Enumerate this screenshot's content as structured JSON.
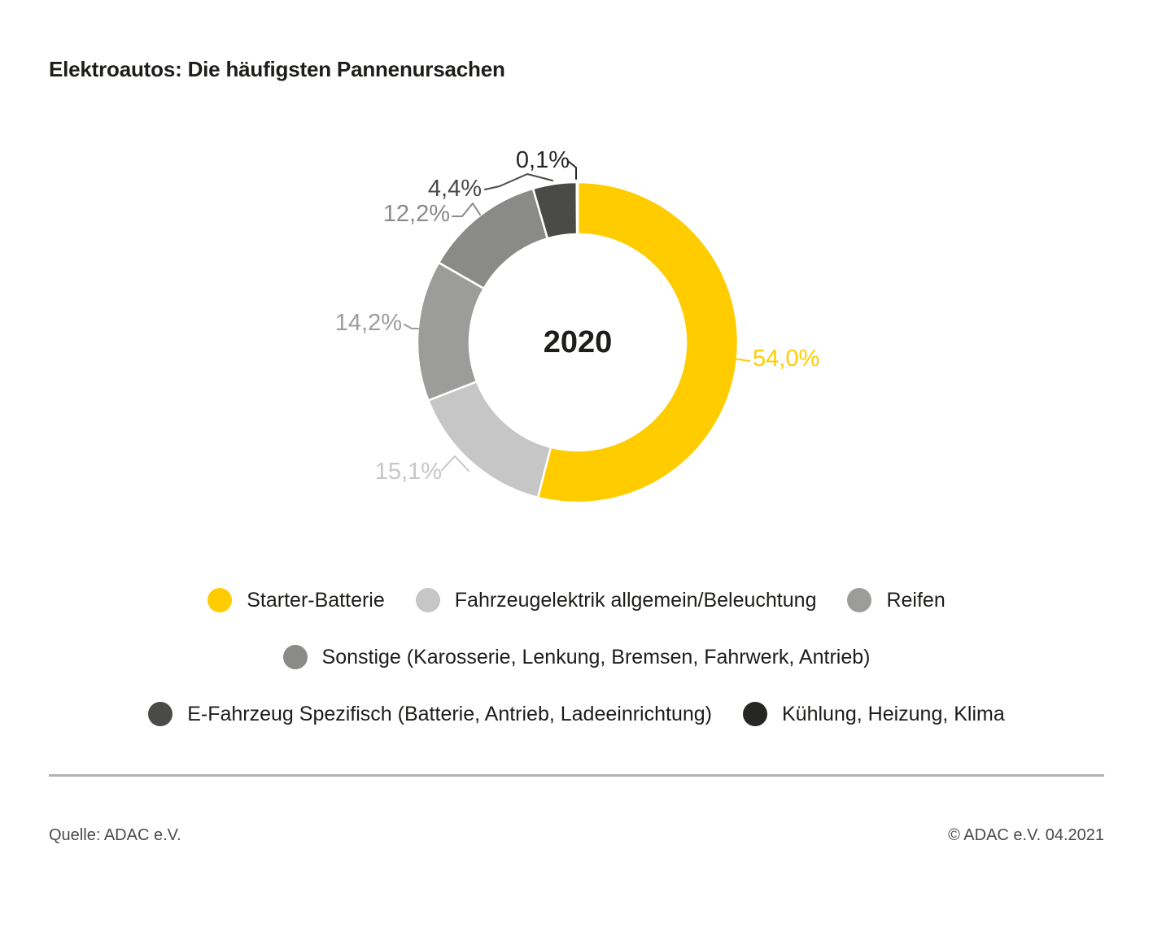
{
  "title": "Elektroautos: Die häufigsten Pannenursachen",
  "chart_data": {
    "type": "pie",
    "subtype": "donut",
    "center_label": "2020",
    "unit": "%",
    "direction": "clockwise",
    "start_angle_deg": 0,
    "legend_position": "bottom",
    "segments": [
      {
        "label": "Starter-Batterie",
        "value": 54.0,
        "display": "54,0%",
        "color": "#FFCC00"
      },
      {
        "label": "Fahrzeugelektrik allgemein/Beleuchtung",
        "value": 15.1,
        "display": "15,1%",
        "color": "#C6C6C6"
      },
      {
        "label": "Reifen",
        "value": 14.2,
        "display": "14,2%",
        "color": "#9C9C9B"
      },
      {
        "label": "Sonstige (Karosserie, Lenkung, Bremsen, Fahrwerk, Antrieb)",
        "value": 12.2,
        "display": "12,2%",
        "color": "#8A8A89"
      },
      {
        "label": "E-Fahrzeug Spezifisch (Batterie, Antrieb, Ladeeinrichtung)",
        "value": 4.4,
        "display": "4,4%",
        "color": "#4A4A49"
      },
      {
        "label": "Kühlung, Heizung, Klima",
        "value": 0.1,
        "display": "0,1%",
        "color": "#262625"
      }
    ]
  },
  "footer": {
    "source": "Quelle: ADAC e.V.",
    "copyright": "© ADAC e.V. 04.2021"
  }
}
